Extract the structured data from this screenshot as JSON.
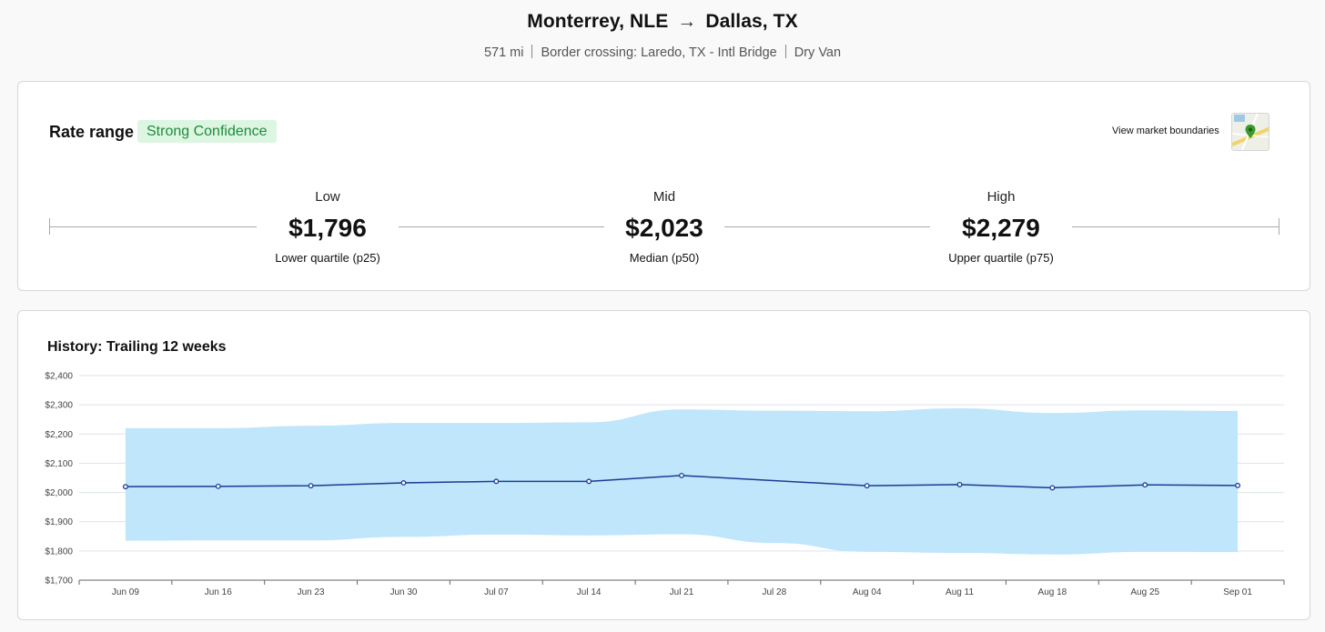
{
  "lane": {
    "origin": "Monterrey, NLE",
    "arrow": "→",
    "destination": "Dallas, TX",
    "meta": [
      "571 mi",
      "Border crossing: Laredo, TX - Intl Bridge",
      "Dry Van"
    ]
  },
  "rate_range": {
    "title": "Rate range",
    "confidence": "Strong Confidence",
    "market_link": "View market boundaries",
    "map_icon": "map-pin-icon",
    "low": {
      "label": "Low",
      "value": "$1,796",
      "sub": "Lower quartile (p25)"
    },
    "mid": {
      "label": "Mid",
      "value": "$2,023",
      "sub": "Median (p50)"
    },
    "high": {
      "label": "High",
      "value": "$2,279",
      "sub": "Upper quartile (p75)"
    }
  },
  "history": {
    "title": "History: Trailing 12 weeks"
  },
  "colors": {
    "band": "#bfe6fa",
    "line": "#1c3b94",
    "badge_bg": "#dcf6e2",
    "badge_text": "#1f8b3c"
  },
  "chart_data": {
    "type": "line",
    "title": "History: Trailing 12 weeks",
    "xlabel": "",
    "ylabel": "",
    "categories": [
      "Jun 09",
      "Jun 16",
      "Jun 23",
      "Jun 30",
      "Jul 07",
      "Jul 14",
      "Jul 21",
      "Jul 28",
      "Aug 04",
      "Aug 11",
      "Aug 18",
      "Aug 25",
      "Sep 01"
    ],
    "series": [
      {
        "values": [
          2020,
          2021,
          2023,
          2033,
          2038,
          2038,
          2058,
          null,
          2023,
          2027,
          2016,
          2026,
          2024
        ]
      }
    ],
    "band": {
      "upper": [
        2220,
        2220,
        2228,
        2238,
        2238,
        2240,
        2284,
        2280,
        2278,
        2288,
        2272,
        2281,
        2279
      ],
      "lower": [
        1835,
        1836,
        1836,
        1848,
        1856,
        1853,
        1857,
        1827,
        1797,
        1793,
        1788,
        1797,
        1796
      ]
    },
    "yticks": [
      "$1,700",
      "$1,800",
      "$1,900",
      "$2,000",
      "$2,100",
      "$2,200",
      "$2,300",
      "$2,400"
    ],
    "ylim": [
      1700,
      2400
    ],
    "grid": true
  }
}
